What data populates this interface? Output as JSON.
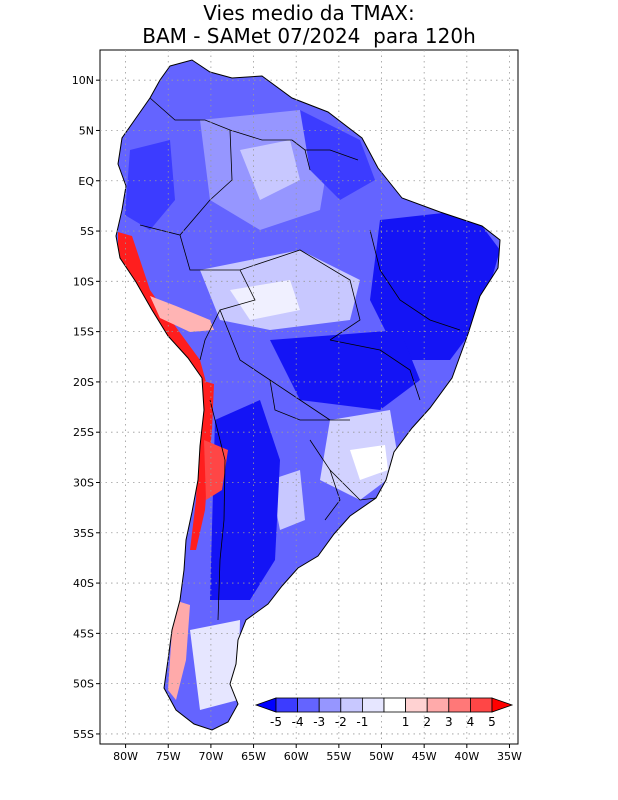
{
  "title": {
    "line1": "Vies medio da TMAX:",
    "line2": "BAM - SAMet 07/2024  para 120h"
  },
  "map": {
    "region": "South America",
    "lon_range": [
      -83,
      -34
    ],
    "lat_range": [
      -56,
      13
    ],
    "lat_ticks": [
      "10N",
      "5N",
      "EQ",
      "5S",
      "10S",
      "15S",
      "20S",
      "25S",
      "30S",
      "35S",
      "40S",
      "45S",
      "50S",
      "55S"
    ],
    "lat_values": [
      10,
      5,
      0,
      -5,
      -10,
      -15,
      -20,
      -25,
      -30,
      -35,
      -40,
      -45,
      -50,
      -55
    ],
    "lon_ticks": [
      "80W",
      "75W",
      "70W",
      "65W",
      "60W",
      "55W",
      "50W",
      "45W",
      "40W",
      "35W"
    ],
    "lon_values": [
      -80,
      -75,
      -70,
      -65,
      -60,
      -55,
      -50,
      -45,
      -40,
      -35
    ],
    "variable": "TMAX bias"
  },
  "colorbar": {
    "labels": [
      "-5",
      "-4",
      "-3",
      "-2",
      "-1",
      "1",
      "2",
      "3",
      "4",
      "5"
    ],
    "colors": [
      "#0000ff",
      "#3c3cff",
      "#6464ff",
      "#9696ff",
      "#c8c8ff",
      "#e6e6ff",
      "#ffffff",
      "#ffd2d2",
      "#ffaaaa",
      "#ff7878",
      "#ff4646",
      "#ff0000"
    ]
  },
  "colors": {
    "strong_blue": "#1414f5",
    "mid_blue": "#5a5aff",
    "light_blue": "#9696ff",
    "pale_blue": "#d2d2ff",
    "red": "#ff1e1e",
    "pink": "#ffb4b4"
  }
}
